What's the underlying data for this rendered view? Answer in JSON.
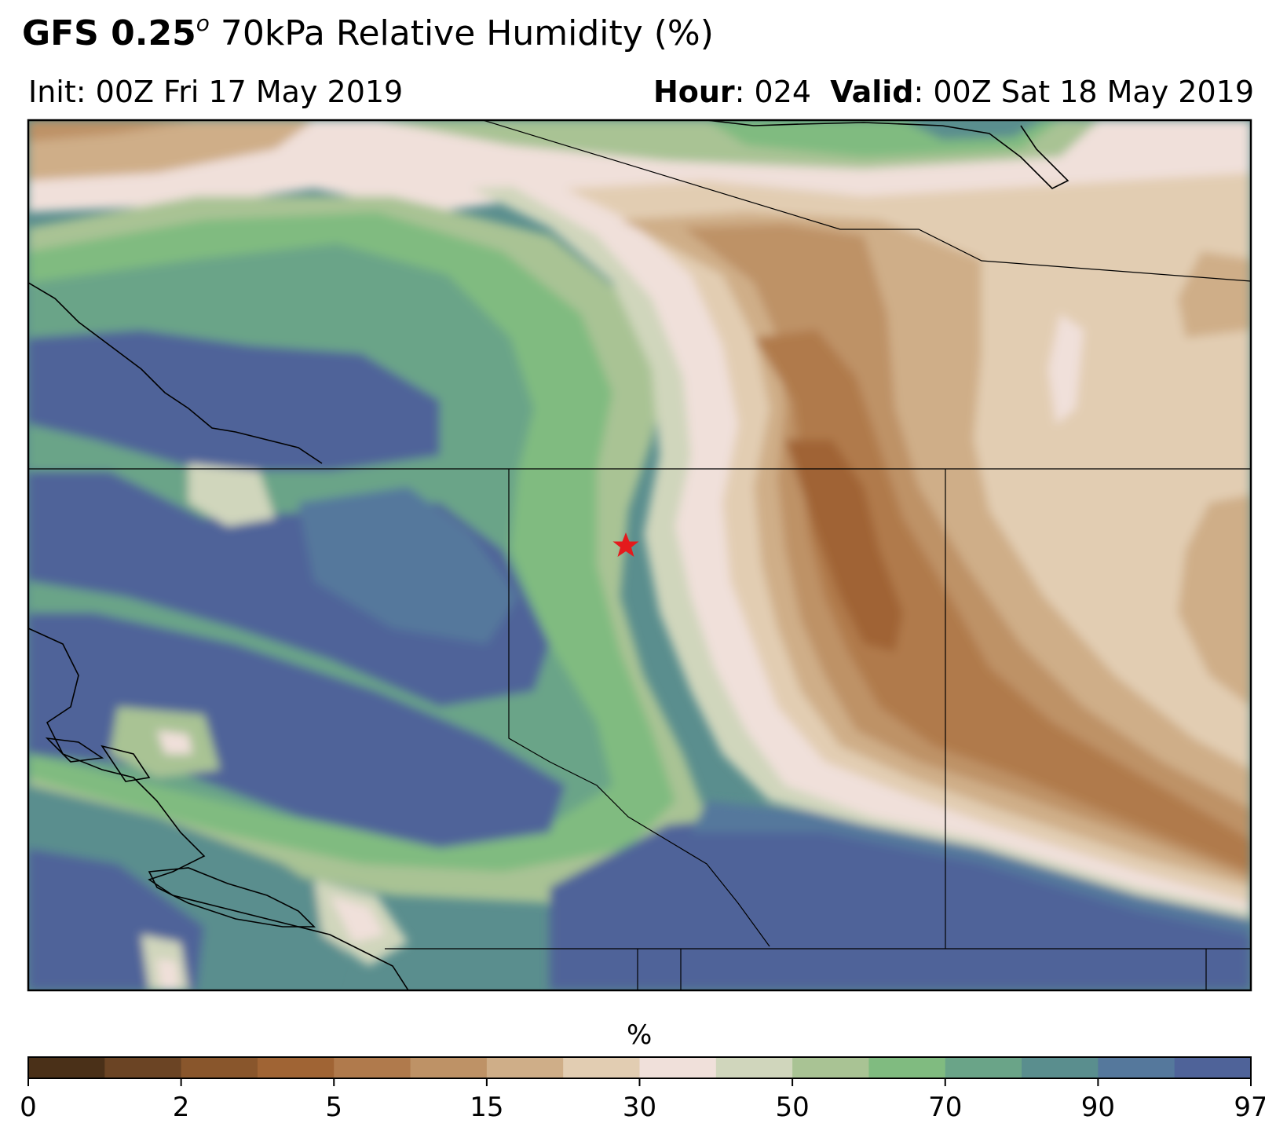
{
  "title": {
    "model_bold": "GFS 0.25",
    "model_super": "o",
    "field": " 70kPa Relative Humidity (%)"
  },
  "init": {
    "label": "Init: ",
    "value": "00Z Fri 17 May 2019"
  },
  "valid": {
    "hour_label": "Hour",
    "hour_value": ": 024",
    "valid_label": "Valid",
    "valid_value": ": 00Z Sat 18 May 2019"
  },
  "colorbar": {
    "label": "%",
    "ticks": [
      "0",
      "2",
      "5",
      "15",
      "30",
      "50",
      "70",
      "90",
      "97"
    ],
    "colors": [
      "#4a3018",
      "#6b4424",
      "#89562c",
      "#a06434",
      "#b07a4c",
      "#be9266",
      "#cfae88",
      "#e2cdb2",
      "#f0e0da",
      "#d0d6bc",
      "#a9c394",
      "#80bb80",
      "#6aa488",
      "#5a8e8e",
      "#55789c",
      "#4f6399"
    ]
  },
  "map": {
    "marker": "red-star",
    "marker_color": "#e41a1c"
  }
}
